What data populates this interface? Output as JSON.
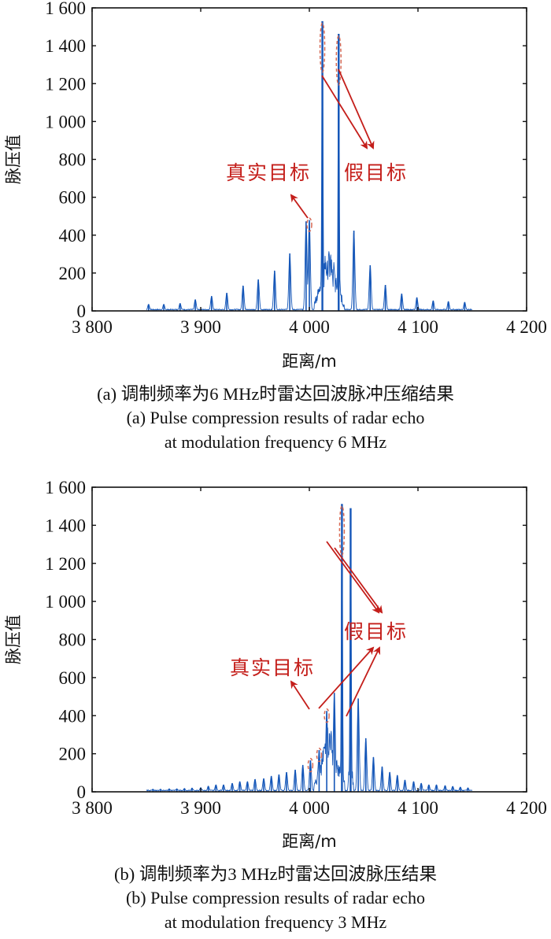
{
  "colors": {
    "signal": "#1456b8",
    "annotation": "#c41e1a",
    "axis": "#111111"
  },
  "chart_data": [
    {
      "type": "line",
      "panel": "a",
      "title": "(a) 调制频率为6 MHz时雷达回波脉冲压缩结果",
      "title_en_line1": "(a) Pulse compression results of radar echo",
      "title_en_line2": "at modulation frequency 6 MHz",
      "xlabel": "距离/m",
      "ylabel": "脉压值",
      "xlim": [
        3800,
        4200
      ],
      "ylim": [
        0,
        1600
      ],
      "xticks": [
        3800,
        3900,
        4000,
        4100,
        4200
      ],
      "xtick_labels": [
        "3 800",
        "3 900",
        "4 000",
        "4 100",
        "4 200"
      ],
      "yticks": [
        0,
        200,
        400,
        600,
        800,
        1000,
        1200,
        1400,
        1600
      ],
      "ytick_labels": [
        "0",
        "200",
        "400",
        "600",
        "800",
        "1 000",
        "1 200",
        "1 400",
        "1 600"
      ],
      "grid": false,
      "signal_span": [
        3850,
        4150
      ],
      "peaks": {
        "x": [
          3852,
          3866,
          3881,
          3895,
          3910,
          3924,
          3939,
          3953,
          3968,
          3982,
          3997,
          4000,
          4012,
          4027,
          4041,
          4056,
          4070,
          4085,
          4099,
          4114,
          4128,
          4143
        ],
        "y": [
          35,
          35,
          40,
          60,
          78,
          95,
          133,
          166,
          212,
          303,
          472,
          480,
          1530,
          1463,
          424,
          241,
          137,
          91,
          71,
          54,
          50,
          46
        ]
      },
      "annotations": [
        {
          "text": "真实目标",
          "targets_x": [
            4000
          ]
        },
        {
          "text": "假目标",
          "targets_x": [
            4012,
            4027
          ]
        }
      ]
    },
    {
      "type": "line",
      "panel": "b",
      "title": "(b) 调制频率为3 MHz时雷达回波脉压结果",
      "title_en_line1": "(b) Pulse compression results of radar echo",
      "title_en_line2": "at modulation frequency 3 MHz",
      "xlabel": "距离/m",
      "ylabel": "脉压值",
      "xlim": [
        3800,
        4200
      ],
      "ylim": [
        0,
        1600
      ],
      "xticks": [
        3800,
        3900,
        4000,
        4100,
        4200
      ],
      "xtick_labels": [
        "3 800",
        "3 900",
        "4 000",
        "4 100",
        "4 200"
      ],
      "yticks": [
        0,
        200,
        400,
        600,
        800,
        1000,
        1200,
        1400,
        1600
      ],
      "ytick_labels": [
        "0",
        "200",
        "400",
        "600",
        "800",
        "1 000",
        "1 200",
        "1 400",
        "1 600"
      ],
      "grid": false,
      "signal_span": [
        3850,
        4150
      ],
      "peaks": {
        "x": [
          3856,
          3863,
          3871,
          3878,
          3885,
          3892,
          3900,
          3907,
          3914,
          3921,
          3929,
          3936,
          3943,
          3950,
          3958,
          3965,
          3972,
          3979,
          3987,
          3994,
          4001,
          4009,
          4016,
          4023,
          4030,
          4038,
          4045,
          4052,
          4059,
          4067,
          4074,
          4081,
          4088,
          4096,
          4103,
          4110,
          4117,
          4125,
          4132,
          4139,
          4146
        ],
        "y": [
          14,
          14,
          16,
          16,
          18,
          20,
          22,
          30,
          37,
          37,
          45,
          54,
          54,
          66,
          70,
          83,
          91,
          103,
          116,
          141,
          165,
          219,
          425,
          520,
          1512,
          1490,
          490,
          281,
          182,
          132,
          103,
          87,
          62,
          54,
          45,
          37,
          37,
          33,
          29,
          25,
          21
        ]
      },
      "annotations": [
        {
          "text": "真实目标",
          "targets_x": [
            4001
          ]
        },
        {
          "text": "假目标",
          "targets_x": [
            4009,
            4016,
            4030
          ]
        }
      ]
    }
  ]
}
